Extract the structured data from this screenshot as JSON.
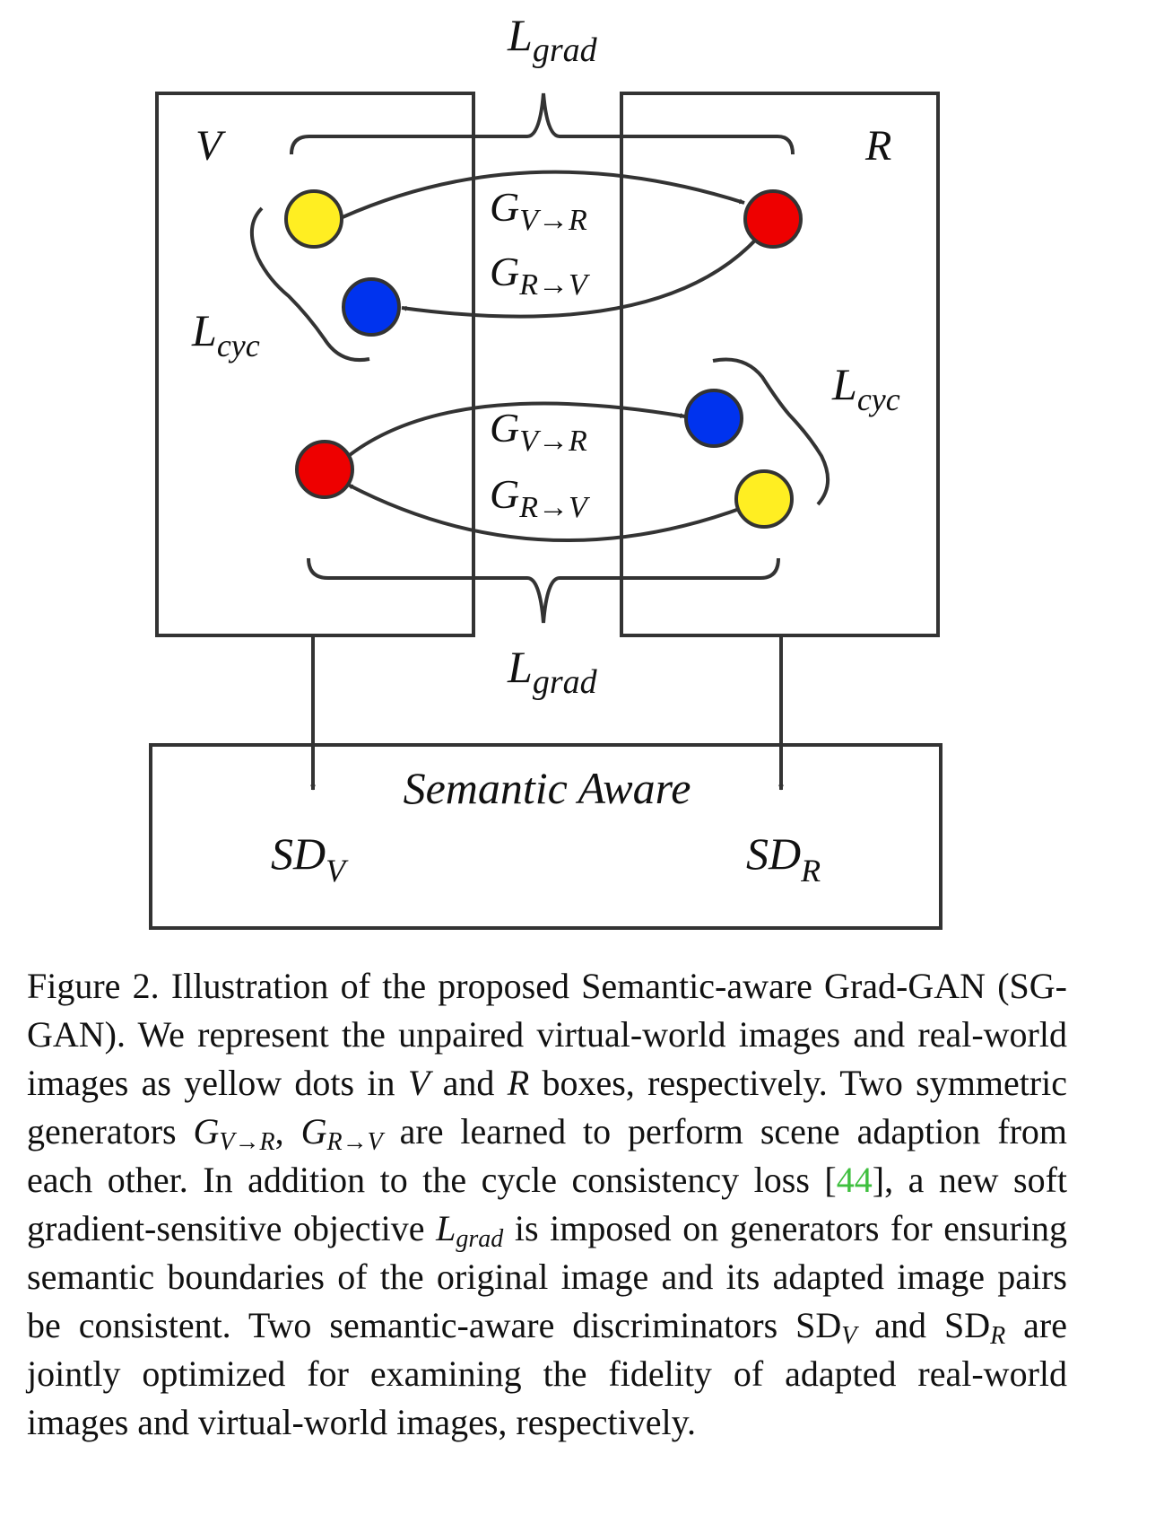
{
  "diagram": {
    "boxes": {
      "virtual_label": "V",
      "real_label": "R",
      "semantic_label": "Semantic Aware"
    },
    "losses": {
      "grad_main": "L",
      "grad_sub": "grad",
      "cyc_main": "L",
      "cyc_sub": "cyc"
    },
    "generators": {
      "g": "G",
      "v_to_r_sub": "V→R",
      "r_to_v_sub": "R→V"
    },
    "discriminators": {
      "sd": "SD",
      "v_sub": "V",
      "r_sub": "R"
    },
    "colors": {
      "yellow": "#ffee22",
      "red": "#ee0000",
      "blue": "#0033ee",
      "stroke": "#333333"
    }
  },
  "caption": {
    "p1": "Figure 2. Illustration of the proposed Semantic-aware Grad-GAN (SG-GAN). We represent the unpaired virtual-world images and real-world images as yellow dots in ",
    "v": "V",
    "p2": " and ",
    "r": "R",
    "p3": " boxes, respectively. Two symmetric generators ",
    "g1": "G",
    "g1_sub": "V→R",
    "comma": ", ",
    "g2": "G",
    "g2_sub": "R→V",
    "p4": " are learned to perform scene adaption from each other. In addition to the cycle consistency loss [",
    "cite": "44",
    "p5": "], a new soft gradient-sensitive objective ",
    "lgrad": "L",
    "lgrad_sub": "grad",
    "p6": " is imposed on generators for ensuring semantic boundaries of the original image and its adapted image pairs be consistent. Two semantic-aware discriminators SD",
    "sdv_sub": "V",
    "p7": " and SD",
    "sdr_sub": "R",
    "p8": " are jointly optimized for examining the fidelity of adapted real-world images and virtual-world images, respectively."
  }
}
